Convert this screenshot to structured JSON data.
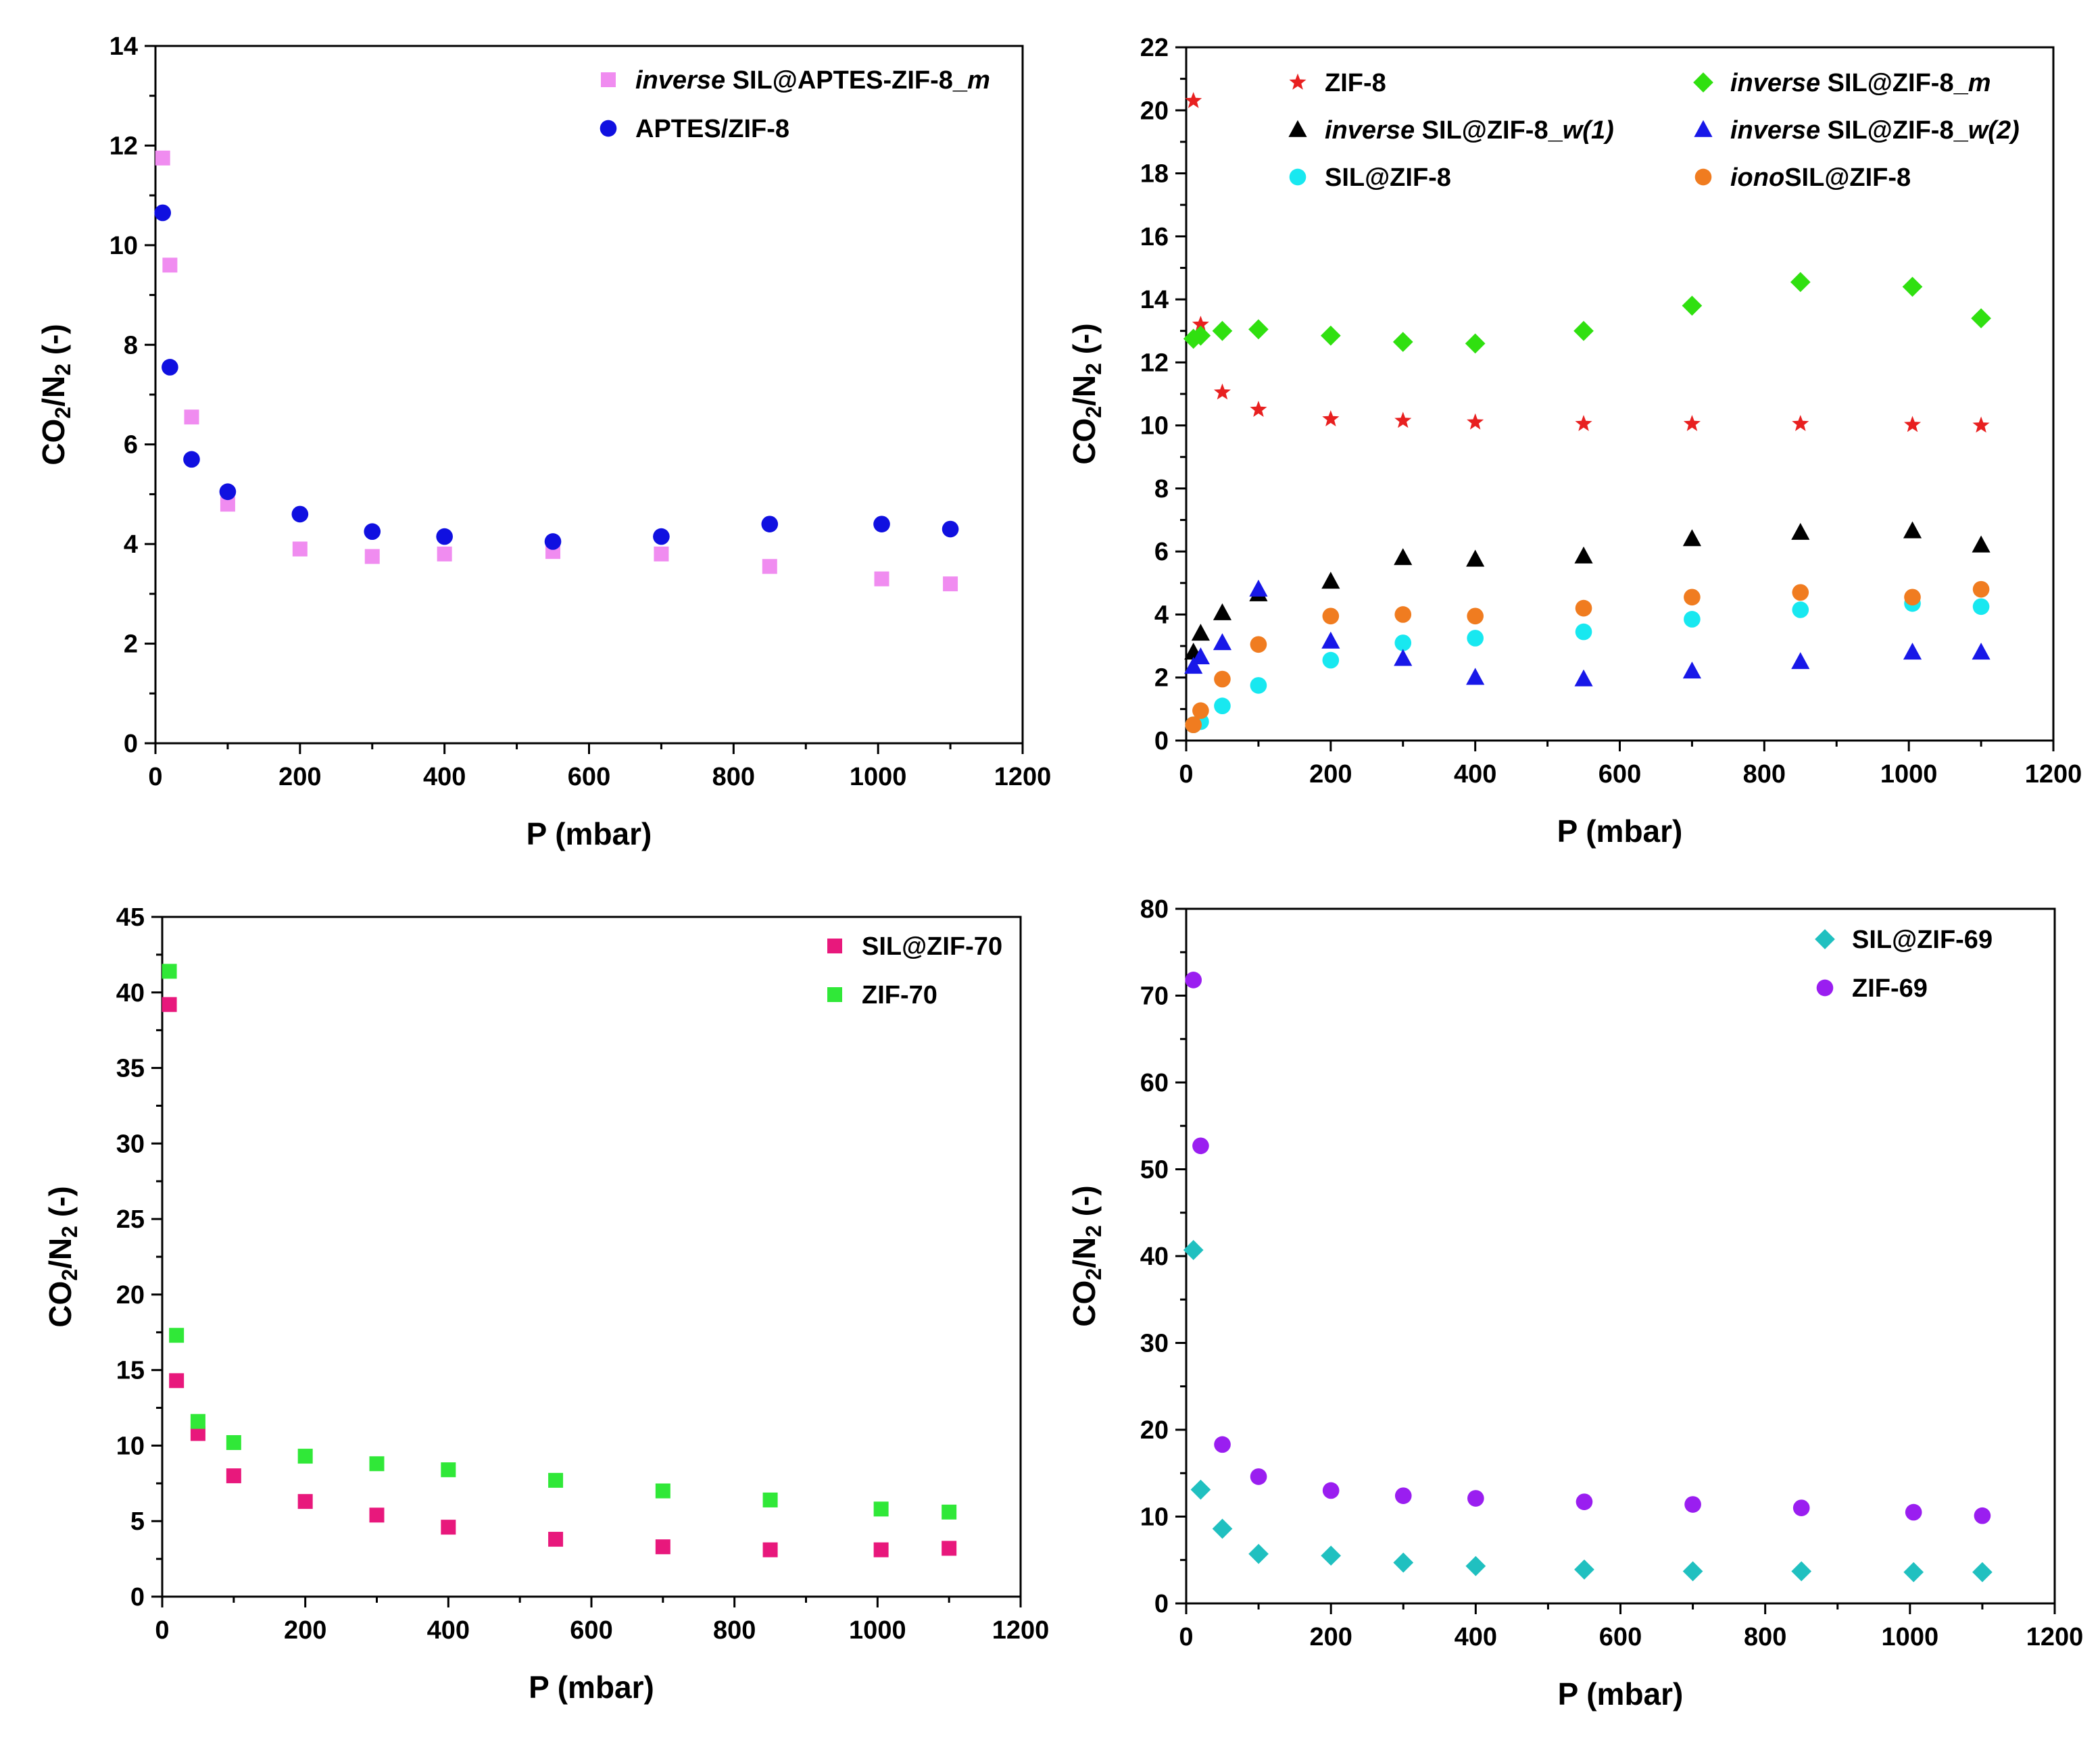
{
  "chart_data": [
    {
      "type": "scatter",
      "xlabel": "P (mbar)",
      "ylabel": "CO2/N2 (-)",
      "xlim": [
        0,
        1200
      ],
      "ylim": [
        0,
        14
      ],
      "xticks": [
        "0",
        "200",
        "400",
        "600",
        "800",
        "1000",
        "1200"
      ],
      "yticks": [
        "0",
        "2",
        "4",
        "6",
        "8",
        "10",
        "12",
        "14"
      ],
      "legend_position": "top-right",
      "series": [
        {
          "name_italic": "inverse",
          "name": " SIL@APTES-ZIF-8_",
          "name_suffix_italic": "m",
          "marker": "square",
          "color": "#f08cf0",
          "x": [
            10,
            20,
            50,
            100,
            200,
            300,
            400,
            550,
            700,
            850,
            1005,
            1100
          ],
          "y": [
            11.75,
            9.6,
            6.55,
            4.8,
            3.9,
            3.75,
            3.8,
            3.85,
            3.8,
            3.55,
            3.3,
            3.2
          ]
        },
        {
          "name_italic": "",
          "name": "APTES/ZIF-8",
          "name_suffix_italic": "",
          "marker": "circle",
          "color": "#1010e0",
          "x": [
            10,
            20,
            50,
            100,
            200,
            300,
            400,
            550,
            700,
            850,
            1005,
            1100
          ],
          "y": [
            10.65,
            7.55,
            5.7,
            5.05,
            4.6,
            4.25,
            4.15,
            4.05,
            4.15,
            4.4,
            4.4,
            4.3
          ]
        }
      ]
    },
    {
      "type": "scatter",
      "xlabel": "P (mbar)",
      "ylabel": "CO2/N2 (-)",
      "xlim": [
        0,
        1200
      ],
      "ylim": [
        0,
        22
      ],
      "xticks": [
        "0",
        "200",
        "400",
        "600",
        "800",
        "1000",
        "1200"
      ],
      "yticks": [
        "0",
        "2",
        "4",
        "6",
        "8",
        "10",
        "12",
        "14",
        "16",
        "18",
        "20",
        "22"
      ],
      "legend_position": "top",
      "series": [
        {
          "name_italic": "",
          "name": "ZIF-8",
          "name_suffix_italic": "",
          "marker": "star",
          "color": "#e82020",
          "x": [
            10,
            20,
            50,
            100,
            200,
            300,
            400,
            550,
            700,
            850,
            1005,
            1100
          ],
          "y": [
            20.3,
            13.2,
            11.05,
            10.5,
            10.2,
            10.15,
            10.1,
            10.05,
            10.05,
            10.05,
            10.02,
            10.0
          ]
        },
        {
          "name_italic": "inverse",
          "name": " SIL@ZIF-8_",
          "name_suffix_italic": "w(1)",
          "marker": "triangle",
          "color": "#000000",
          "x": [
            10,
            20,
            50,
            100,
            200,
            300,
            400,
            550,
            700,
            850,
            1005,
            1100
          ],
          "y": [
            2.8,
            3.4,
            4.05,
            4.65,
            5.05,
            5.8,
            5.75,
            5.85,
            6.4,
            6.6,
            6.65,
            6.2
          ]
        },
        {
          "name_italic": "",
          "name": "SIL@ZIF-8",
          "name_suffix_italic": "",
          "marker": "circle",
          "color": "#18e8f0",
          "x": [
            10,
            20,
            50,
            100,
            200,
            300,
            400,
            550,
            700,
            850,
            1005,
            1100
          ],
          "y": [
            0.5,
            0.6,
            1.1,
            1.75,
            2.55,
            3.1,
            3.25,
            3.45,
            3.85,
            4.15,
            4.35,
            4.25
          ]
        },
        {
          "name_italic": "inverse",
          "name": " SIL@ZIF-8_",
          "name_suffix_italic": "m",
          "marker": "diamond",
          "color": "#30e010",
          "x": [
            10,
            20,
            50,
            100,
            200,
            300,
            400,
            550,
            700,
            850,
            1005,
            1100
          ],
          "y": [
            12.75,
            12.85,
            13.0,
            13.05,
            12.85,
            12.65,
            12.6,
            13.0,
            13.8,
            14.55,
            14.4,
            13.4
          ]
        },
        {
          "name_italic": "inverse",
          "name": " SIL@ZIF-8_",
          "name_suffix_italic": "w(2)",
          "marker": "triangle",
          "color": "#1818e8",
          "x": [
            10,
            20,
            50,
            100,
            200,
            300,
            400,
            550,
            700,
            850,
            1005,
            1100
          ],
          "y": [
            2.35,
            2.65,
            3.1,
            4.8,
            3.15,
            2.6,
            2.0,
            1.95,
            2.2,
            2.5,
            2.8,
            2.8
          ]
        },
        {
          "name_italic": "iono",
          "name": "SIL@ZIF-8",
          "name_suffix_italic": "",
          "marker": "circle",
          "color": "#f07c20",
          "x": [
            10,
            20,
            50,
            100,
            200,
            300,
            400,
            550,
            700,
            850,
            1005,
            1100
          ],
          "y": [
            0.5,
            0.95,
            1.95,
            3.05,
            3.95,
            4.0,
            3.95,
            4.2,
            4.55,
            4.7,
            4.55,
            4.8
          ]
        }
      ]
    },
    {
      "type": "scatter",
      "xlabel": "P (mbar)",
      "ylabel": "CO2/N2 (-)",
      "xlim": [
        0,
        1200
      ],
      "ylim": [
        0,
        45
      ],
      "xticks": [
        "0",
        "200",
        "400",
        "600",
        "800",
        "1000",
        "1200"
      ],
      "yticks": [
        "0",
        "5",
        "10",
        "15",
        "20",
        "25",
        "30",
        "35",
        "40",
        "45"
      ],
      "legend_position": "top-right",
      "series": [
        {
          "name_italic": "",
          "name": "SIL@ZIF-70",
          "name_suffix_italic": "",
          "marker": "square",
          "color": "#e8187c",
          "x": [
            10,
            20,
            50,
            100,
            200,
            300,
            400,
            550,
            700,
            850,
            1005,
            1100
          ],
          "y": [
            39.2,
            14.3,
            10.8,
            8.0,
            6.3,
            5.4,
            4.6,
            3.8,
            3.3,
            3.1,
            3.1,
            3.2
          ]
        },
        {
          "name_italic": "",
          "name": "ZIF-70",
          "name_suffix_italic": "",
          "marker": "square",
          "color": "#30e838",
          "x": [
            10,
            20,
            50,
            100,
            200,
            300,
            400,
            550,
            700,
            850,
            1005,
            1100
          ],
          "y": [
            41.4,
            17.3,
            11.6,
            10.2,
            9.3,
            8.8,
            8.4,
            7.7,
            7.0,
            6.4,
            5.8,
            5.6
          ]
        }
      ]
    },
    {
      "type": "scatter",
      "xlabel": "P (mbar)",
      "ylabel": "CO2/N2 (-)",
      "xlim": [
        0,
        1200
      ],
      "ylim": [
        0,
        80
      ],
      "xticks": [
        "0",
        "200",
        "400",
        "600",
        "800",
        "1000",
        "1200"
      ],
      "yticks": [
        "0",
        "10",
        "20",
        "30",
        "40",
        "50",
        "60",
        "70",
        "80"
      ],
      "legend_position": "top-right",
      "series": [
        {
          "name_italic": "",
          "name": "SIL@ZIF-69",
          "name_suffix_italic": "",
          "marker": "diamond",
          "color": "#20c0c0",
          "x": [
            10,
            20,
            50,
            100,
            200,
            300,
            400,
            550,
            700,
            850,
            1005,
            1100
          ],
          "y": [
            40.7,
            13.1,
            8.6,
            5.7,
            5.5,
            4.7,
            4.3,
            3.9,
            3.7,
            3.7,
            3.6,
            3.6
          ]
        },
        {
          "name_italic": "",
          "name": "ZIF-69",
          "name_suffix_italic": "",
          "marker": "circle",
          "color": "#9a1ef0",
          "x": [
            10,
            20,
            50,
            100,
            200,
            300,
            400,
            550,
            700,
            850,
            1005,
            1100
          ],
          "y": [
            71.8,
            52.7,
            18.3,
            14.6,
            13.0,
            12.4,
            12.1,
            11.7,
            11.4,
            11.0,
            10.5,
            10.1
          ]
        }
      ]
    }
  ]
}
